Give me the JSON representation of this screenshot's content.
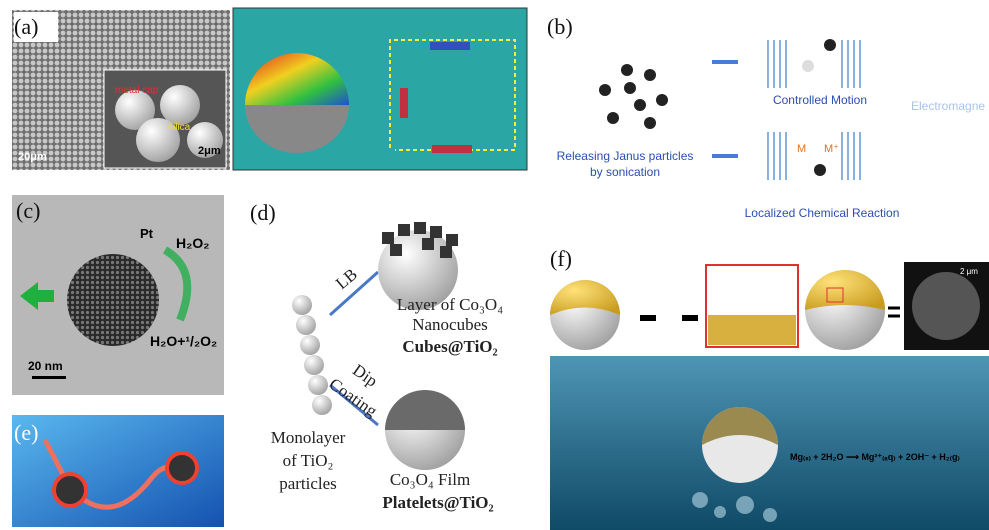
{
  "panels": {
    "a": {
      "label": "(a)",
      "cap_label": "metal cap",
      "core_label": "silica",
      "scale_main": "20μm",
      "scale_inset": "2μm"
    },
    "b": {
      "label": "(b)",
      "top_caption": "Controlled  Motion",
      "side_caption": "Electromagne",
      "left_caption_line1": "Releasing Janus particles",
      "left_caption_line2": "by sonication",
      "bottom_caption": "Localized Chemical Reaction",
      "metal": "M",
      "ion": "M⁺"
    },
    "c": {
      "label": "(c)",
      "catalyst": "Pt",
      "reactant": "H₂O₂",
      "product": "H₂O+¹/₂O₂",
      "scale": "20 nm"
    },
    "d": {
      "label": "(d)",
      "route1": "LB",
      "product1_line1": "Layer of Co₃O₄",
      "product1_line2": "Nanocubes",
      "product1_name": "Cubes@TiO₂",
      "route2_line1": "Dip",
      "route2_line2": "Coating",
      "start_line1": "Monolayer",
      "start_line2": "of TiO₂",
      "start_line3": "particles",
      "product2_line1": "Co₃O₄ Film",
      "product2_name": "Platelets@TiO₂"
    },
    "e": {
      "label": "(e)"
    },
    "f": {
      "label": "(f)",
      "scale": "2 μm",
      "equation": "Mg₍ₛ₎ + 2H₂O ⟶ Mg²⁺₍ₐq₎ + 2OH⁻ + H₂₍g₎"
    }
  }
}
